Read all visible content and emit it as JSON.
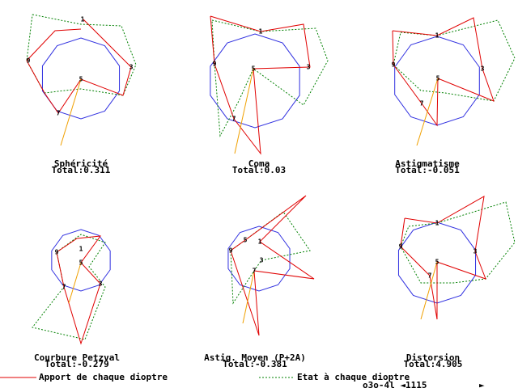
{
  "panels": [
    {
      "title": "Sphéricité",
      "total": "Total:0.311",
      "nodes": [
        "1",
        "3",
        "5",
        "9",
        "7"
      ]
    },
    {
      "title": "Coma",
      "total": "Total:0.03",
      "nodes": [
        "1",
        "3",
        "5",
        "9",
        "7"
      ]
    },
    {
      "title": "Astigmatisme",
      "total": "Total:-0.051",
      "nodes": [
        "1",
        "3",
        "5",
        "9",
        "7"
      ]
    },
    {
      "title": "Courbure Petzval",
      "total": "Total:-0.279",
      "nodes": [
        "1",
        "3",
        "5",
        "9",
        "7"
      ]
    },
    {
      "title": "Astig. Moyen (P+2A)",
      "total": "Total:-0.381",
      "nodes": [
        "1",
        "3",
        "5",
        "9",
        "7"
      ]
    },
    {
      "title": "Distorsion",
      "total": "Total:4.905",
      "nodes": [
        "1",
        "3",
        "5",
        "9",
        "7"
      ]
    }
  ],
  "legend": {
    "contribution": "Apport de chaque dioptre",
    "state": "Etat à chaque dioptre"
  },
  "footer": {
    "status": "o3o-4l ◄1115",
    "arrow": "►"
  }
}
